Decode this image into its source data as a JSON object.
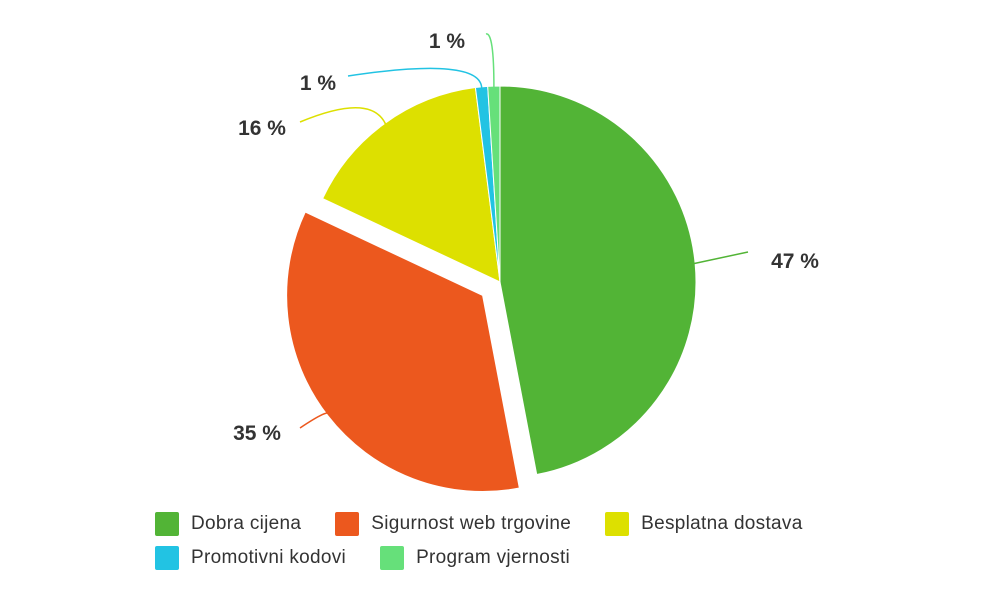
{
  "chart_data": {
    "type": "pie",
    "categories": [
      "Dobra cijena",
      "Sigurnost web trgovine",
      "Besplatna dostava",
      "Promotivni kodovi",
      "Program vjernosti"
    ],
    "values": [
      47,
      35,
      16,
      1,
      1
    ],
    "value_labels": [
      "47 %",
      "35 %",
      "16 %",
      "1 %",
      "1 %"
    ],
    "colors": [
      "#52b436",
      "#ec581e",
      "#dde000",
      "#22c3e3",
      "#66e07a"
    ],
    "exploded": "Sigurnost web trgovine",
    "legend_position": "bottom",
    "title": ""
  }
}
